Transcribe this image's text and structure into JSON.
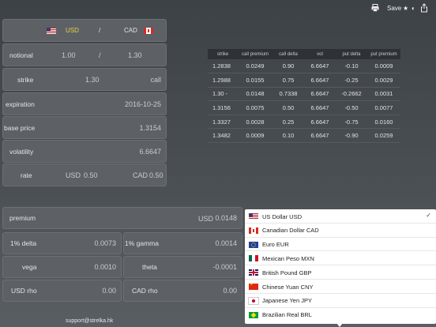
{
  "toolbar": {
    "print_icon": "printer-icon",
    "save_label": "Save",
    "star_glyph": "★",
    "contrast_glyph": "◐",
    "share_glyph": "⇪"
  },
  "currency_header": {
    "base": "USD",
    "separator": "/",
    "quote": "CAD"
  },
  "inputs": {
    "notional": {
      "label": "notional",
      "base": "1.00",
      "separator": "/",
      "quote": "1.30"
    },
    "strike": {
      "label": "strike",
      "value": "1.30",
      "type": "call"
    },
    "expiration": {
      "label": "expiration",
      "value": "2016-10-25"
    },
    "base_price": {
      "label": "base price",
      "value": "1.3154"
    },
    "volatility": {
      "label": "volatility",
      "value": "6.6647"
    },
    "rate": {
      "label": "rate",
      "base_ccy": "USD",
      "base_rate": "0.50",
      "quote_ccy": "CAD",
      "quote_rate": "0.50"
    }
  },
  "strike_table": {
    "headers": [
      "strike",
      "call premium",
      "call delta",
      "vol",
      "put delta",
      "put premium"
    ],
    "rows": [
      [
        "1.2838",
        "0.0249",
        "0.90",
        "6.6647",
        "-0.10",
        "0.0009"
      ],
      [
        "1.2988",
        "0.0155",
        "0.75",
        "6.6647",
        "-0.25",
        "0.0029"
      ],
      [
        "1.30 -",
        "0.0148",
        "0.7338",
        "6.6647",
        "-0.2662",
        "0.0031"
      ],
      [
        "1.3156",
        "0.0075",
        "0.50",
        "6.6647",
        "-0.50",
        "0.0077"
      ],
      [
        "1.3327",
        "0.0028",
        "0.25",
        "6.6647",
        "-0.75",
        "0.0160"
      ],
      [
        "1.3482",
        "0.0009",
        "0.10",
        "6.6647",
        "-0.90",
        "0.0259"
      ]
    ]
  },
  "results": {
    "premium": {
      "label": "premium",
      "ccy": "USD",
      "value": "0.0148"
    },
    "delta": {
      "label": "1% delta",
      "value": "0.0073"
    },
    "gamma": {
      "label": "1% gamma",
      "value": "0.0014"
    },
    "vega": {
      "label": "vega",
      "value": "0.0010"
    },
    "theta": {
      "label": "theta",
      "value": "-0.0001"
    },
    "usd_rho": {
      "label": "USD rho",
      "value": "0.00"
    },
    "cad_rho": {
      "label": "CAD rho",
      "value": "0.00"
    }
  },
  "currency_menu": {
    "items": [
      {
        "label": "US Dollar USD",
        "flag": "us-flag-icon",
        "selected": true
      },
      {
        "label": "Canadian Dollar CAD",
        "flag": "ca-flag-icon"
      },
      {
        "label": "Euro EUR",
        "flag": "eu-flag-icon"
      },
      {
        "label": "Mexican Peso MXN",
        "flag": "mx-flag-icon"
      },
      {
        "label": "British Pound GBP",
        "flag": "gb-flag-icon"
      },
      {
        "label": "Chinese Yuan CNY",
        "flag": "cn-flag-icon"
      },
      {
        "label": "Japanese Yen JPY",
        "flag": "jp-flag-icon"
      },
      {
        "label": "Brazilian Real BRL",
        "flag": "br-flag-icon"
      }
    ],
    "check_glyph": "✓"
  },
  "footer": {
    "email": "support@strelka.hk"
  },
  "colors": {
    "accent": "#e6d24a",
    "background": "#4a4f54",
    "panel": "#5d6166"
  }
}
